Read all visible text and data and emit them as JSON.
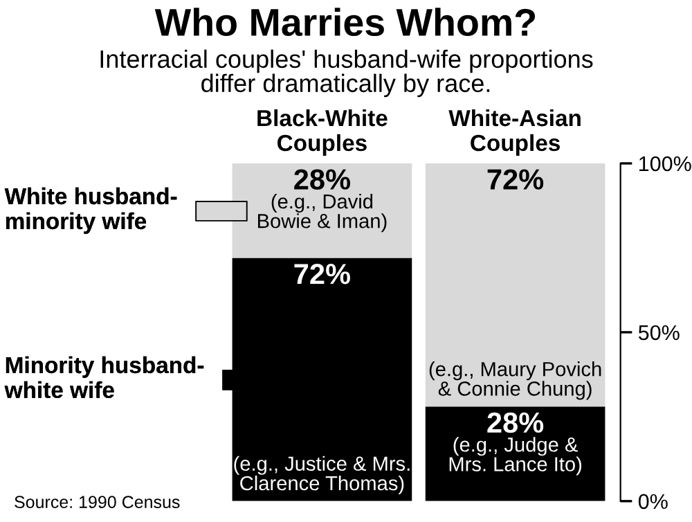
{
  "chart_data": {
    "type": "bar",
    "title": "Who Marries Whom?",
    "subtitle": "Interracial couples' husband-wife proportions\ndiffer dramatically by race.",
    "categories": [
      "Black-White\nCouples",
      "White-Asian\nCouples"
    ],
    "stacked": true,
    "series": [
      {
        "name": "Minority husband-\nwhite wife",
        "color": "#000000",
        "values": [
          72,
          28
        ],
        "value_labels": [
          "72%",
          "28%"
        ]
      },
      {
        "name": "White husband-\nminority wife",
        "color": "#d9d9d9",
        "values": [
          28,
          72
        ],
        "value_labels": [
          "28%",
          "72%"
        ]
      }
    ],
    "ylim": [
      0,
      100
    ],
    "yticks": [
      {
        "value": 0,
        "label": "0%"
      },
      {
        "value": 50,
        "label": "50%"
      },
      {
        "value": 100,
        "label": "100%"
      }
    ],
    "legend": "left",
    "grid": false,
    "annotations": [
      "(e.g., Justice & Mrs.\nClarence Thomas)",
      "(e.g., Judge &\nMrs. Lance Ito)",
      "(e.g., David\nBowie & Iman)",
      "(e.g., Maury Povich\n& Connie Chung)",
      "Source: 1990 Census"
    ]
  }
}
